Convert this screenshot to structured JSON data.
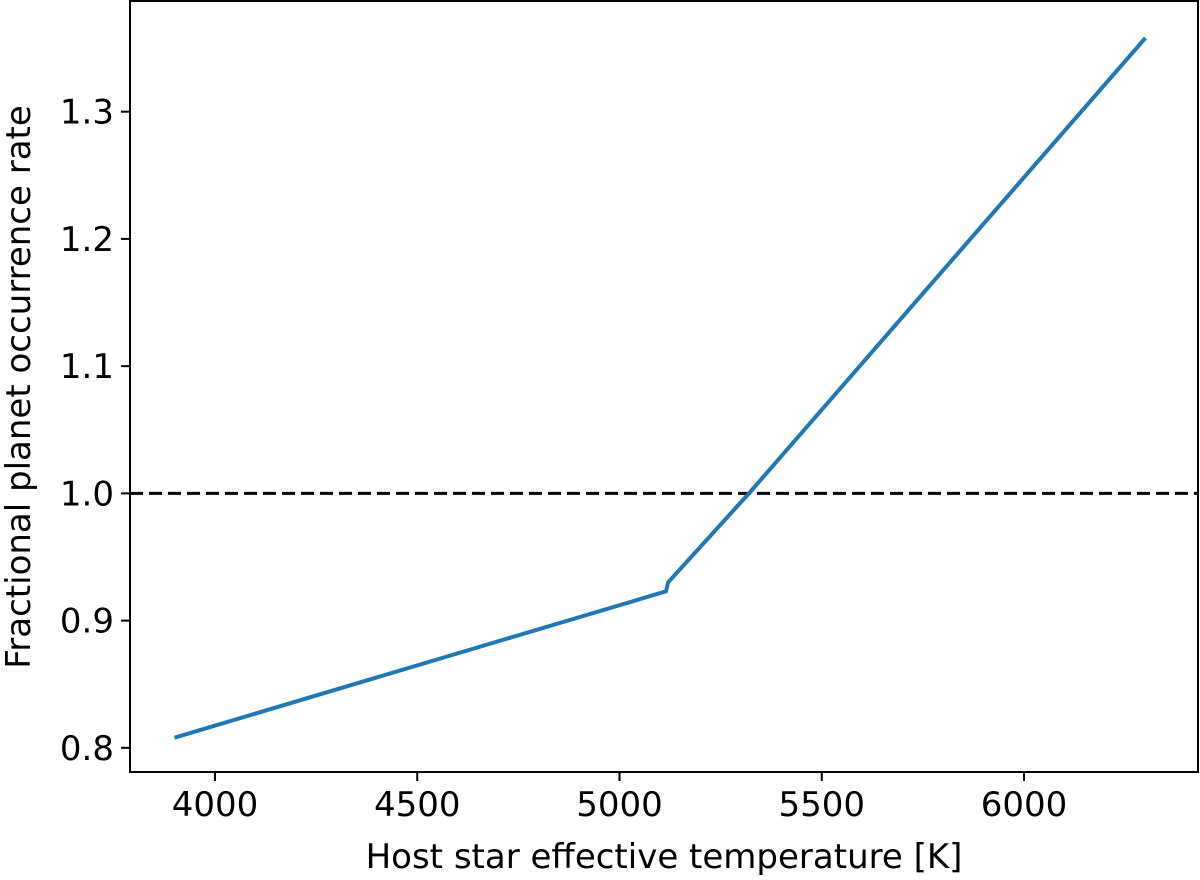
{
  "chart_data": {
    "type": "line",
    "xlabel": "Host star effective temperature [K]",
    "ylabel": "Fractional planet occurrence rate",
    "xlim": [
      3790,
      6430
    ],
    "ylim": [
      0.781,
      1.387
    ],
    "xticks": [
      4000,
      4500,
      5000,
      5500,
      6000
    ],
    "xtick_labels": [
      "4000",
      "4500",
      "5000",
      "5500",
      "6000"
    ],
    "yticks": [
      0.8,
      0.9,
      1.0,
      1.1,
      1.2,
      1.3
    ],
    "ytick_labels": [
      "0.8",
      "0.9",
      "1.0",
      "1.1",
      "1.2",
      "1.3"
    ],
    "grid": false,
    "legend": "none",
    "series": [
      {
        "color": "#1f77b4",
        "style": "solid",
        "x": [
          3900,
          5115,
          5115,
          5120,
          5320,
          6300
        ],
        "y": [
          0.808,
          0.923,
          0.923,
          0.93,
          1.0,
          1.358
        ]
      }
    ],
    "reference_lines": [
      {
        "orientation": "horizontal",
        "y": 1.0,
        "color": "#000000",
        "style": "dashed"
      }
    ]
  }
}
